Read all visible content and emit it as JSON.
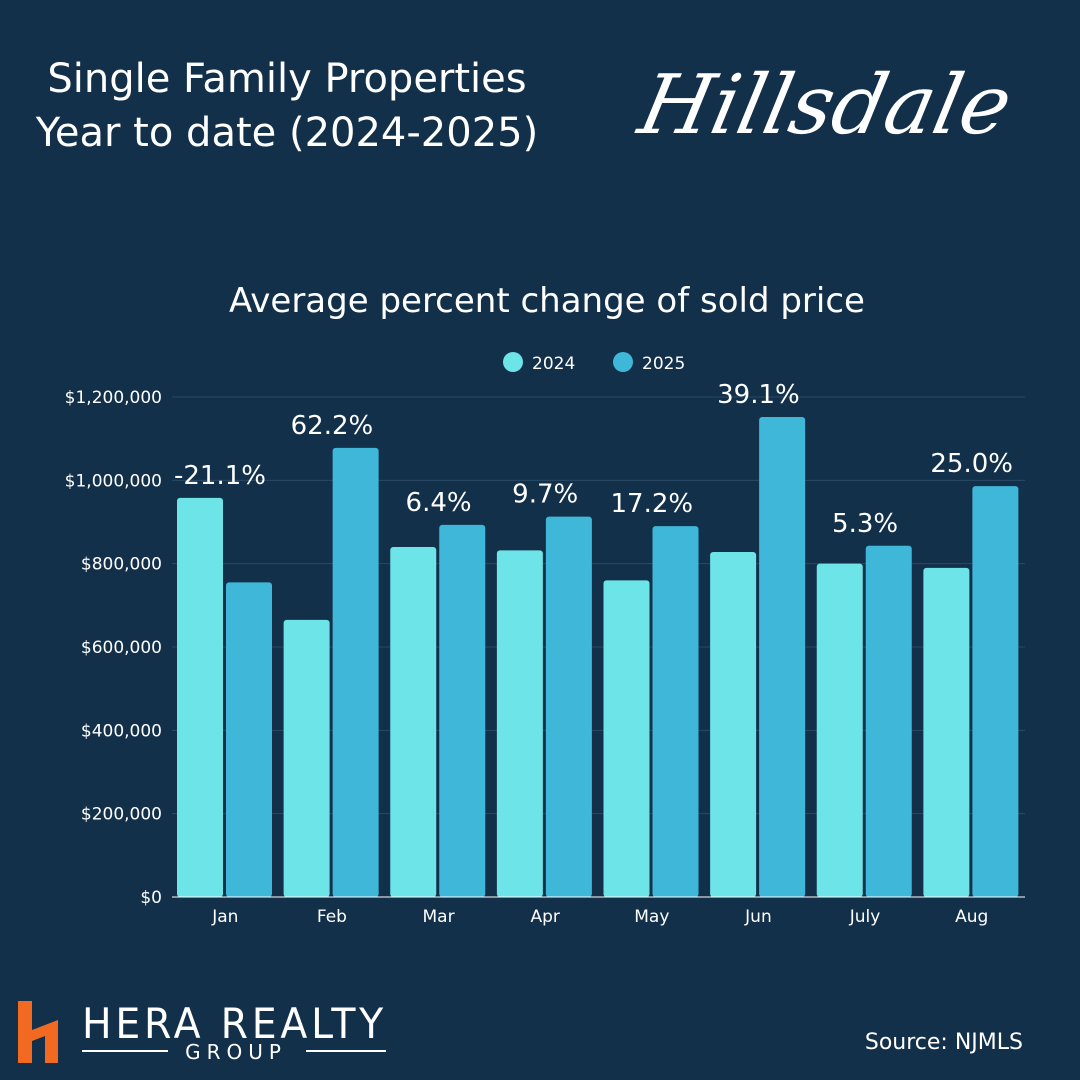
{
  "header": {
    "title_line1": "Single Family Properties",
    "title_line2": "Year to date  (2024-2025)",
    "town": "Hillsdale"
  },
  "footer": {
    "brand": "HERA REALTY",
    "brand_sub": "GROUP",
    "source": "Source: NJMLS"
  },
  "colors": {
    "background": "#13304a",
    "series_2024": "#6ce4e8",
    "series_2025": "#3fb7d8",
    "logo_orange": "#f26a21",
    "gridline": "#2a4965"
  },
  "chart_data": {
    "type": "bar",
    "title": "Average percent change of sold price",
    "categories": [
      "Jan",
      "Feb",
      "Mar",
      "Apr",
      "May",
      "Jun",
      "July",
      "Aug"
    ],
    "series": [
      {
        "name": "2024",
        "values": [
          958000,
          665000,
          840000,
          832000,
          760000,
          828000,
          800000,
          790000
        ]
      },
      {
        "name": "2025",
        "values": [
          755000,
          1078000,
          893000,
          913000,
          890000,
          1152000,
          843000,
          986000
        ]
      }
    ],
    "annotations": [
      "-21.1%",
      "62.2%",
      "6.4%",
      "9.7%",
      "17.2%",
      "39.1%",
      "5.3%",
      "25.0%"
    ],
    "ylim": [
      0,
      1200000
    ],
    "yticks": [
      "$0",
      "$200,000",
      "$400,000",
      "$600,000",
      "$800,000",
      "$1,000,000",
      "$1,200,000"
    ],
    "grid": true,
    "legend": "top-center"
  }
}
